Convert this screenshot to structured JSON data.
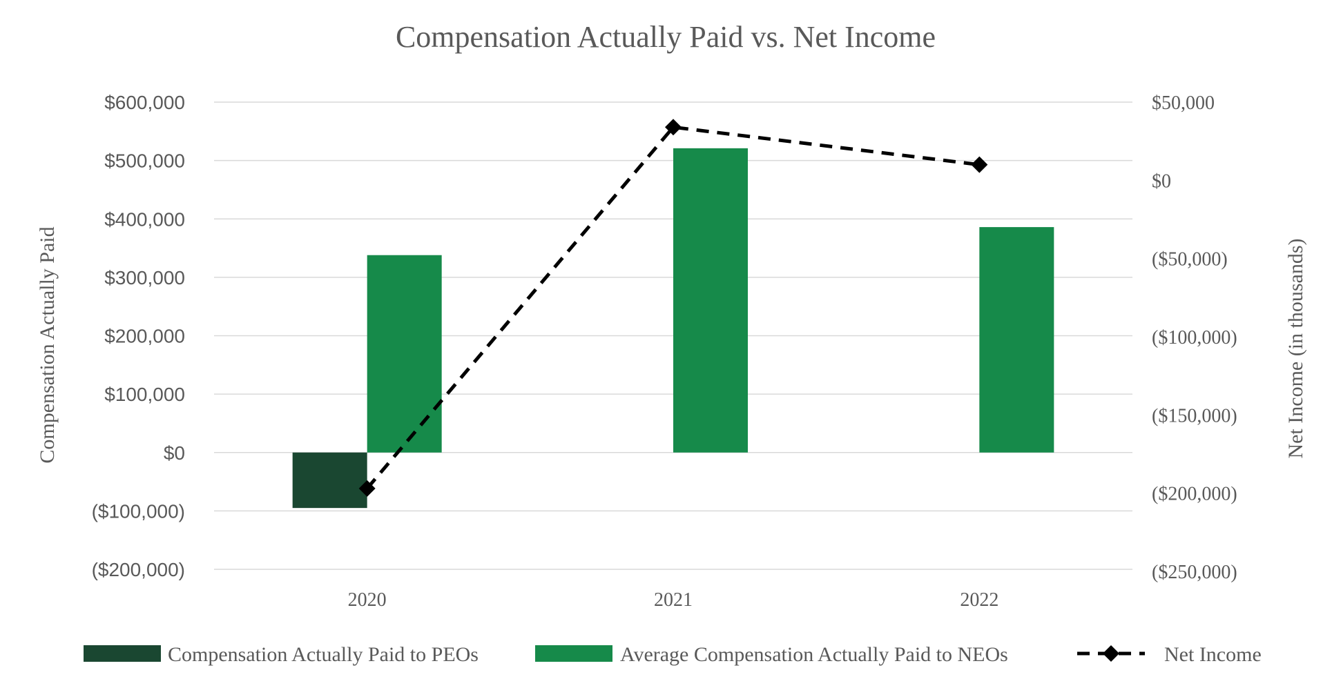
{
  "chart_data": {
    "type": "bar",
    "title": "Compensation Actually Paid vs. Net Income",
    "categories": [
      "2020",
      "2021",
      "2022"
    ],
    "ylabel": "Compensation Actually Paid",
    "y2label": "Net Income (in thousands)",
    "ylim": [
      -200000,
      600000
    ],
    "y2lim": [
      -250000,
      50000
    ],
    "yticks": [
      "($200,000)",
      "($100,000)",
      "$0",
      "$100,000",
      "$200,000",
      "$300,000",
      "$400,000",
      "$500,000",
      "$600,000"
    ],
    "y2ticks": [
      "($250,000)",
      "($200,000)",
      "($150,000)",
      "($100,000)",
      "($50,000)",
      "$0",
      "$50,000"
    ],
    "yticks_values": [
      -200000,
      -100000,
      0,
      100000,
      200000,
      300000,
      400000,
      500000,
      600000
    ],
    "y2ticks_values": [
      -250000,
      -200000,
      -150000,
      -100000,
      -50000,
      0,
      50000
    ],
    "series": [
      {
        "name": "Compensation Actually Paid to PEOs",
        "kind": "bar",
        "axis": "left",
        "color": "#1a4731",
        "values": [
          -95000,
          null,
          null
        ]
      },
      {
        "name": "Average Compensation Actually Paid to NEOs",
        "kind": "bar",
        "axis": "left",
        "color": "#168a4a",
        "values": [
          338000,
          521000,
          386000
        ]
      },
      {
        "name": "Net Income",
        "kind": "line",
        "axis": "right",
        "color": "#000000",
        "style": "dashed",
        "marker": "diamond",
        "values": [
          -197000,
          34000,
          10000
        ]
      }
    ],
    "legend_position": "bottom"
  }
}
